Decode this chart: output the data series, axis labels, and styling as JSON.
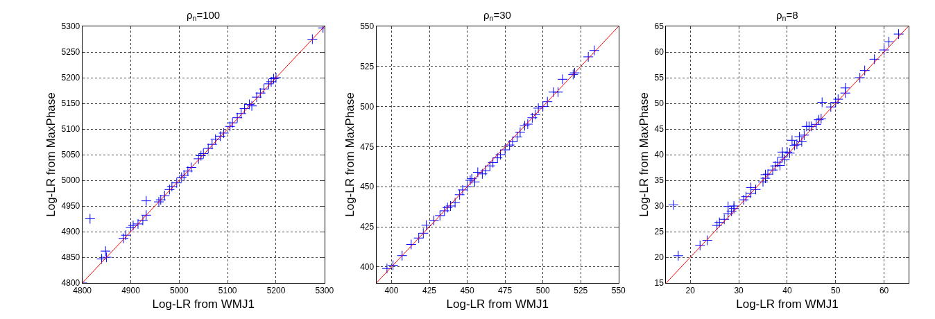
{
  "chart_data": [
    {
      "type": "scatter",
      "title": "ρ$_{n}$=100",
      "xlabel": "Log-LR from WMJ1",
      "ylabel": "Log-LR from MaxPhase",
      "xlim": [
        4800,
        5300
      ],
      "ylim": [
        4800,
        5300
      ],
      "xticks": [
        4800,
        4900,
        5000,
        5100,
        5200,
        5300
      ],
      "yticks": [
        4800,
        4850,
        4900,
        4950,
        5000,
        5050,
        5100,
        5150,
        5200,
        5250,
        5300
      ],
      "grid": true,
      "series": [
        {
          "marker": "cross",
          "color": "#0000ff",
          "x": [
            4800,
            4816,
            4840,
            4848,
            4850,
            4885,
            4890,
            4900,
            4905,
            4915,
            4925,
            4932,
            4932,
            4958,
            4962,
            4970,
            4980,
            4985,
            4995,
            5005,
            5010,
            5018,
            5025,
            5040,
            5045,
            5050,
            5060,
            5068,
            5075,
            5085,
            5092,
            5105,
            5110,
            5120,
            5128,
            5135,
            5145,
            5150,
            5160,
            5168,
            5175,
            5185,
            5190,
            5195,
            5200,
            5275,
            5297
          ],
          "values": [
            4800,
            4925,
            4847,
            4862,
            4850,
            4887,
            4893,
            4908,
            4912,
            4915,
            4922,
            4960,
            4932,
            4958,
            4962,
            4970,
            4982,
            4988,
            4995,
            5006,
            5010,
            5018,
            5025,
            5042,
            5048,
            5052,
            5062,
            5070,
            5080,
            5086,
            5092,
            5105,
            5112,
            5122,
            5130,
            5140,
            5148,
            5145,
            5162,
            5170,
            5178,
            5188,
            5192,
            5198,
            5200,
            5275,
            5297
          ]
        },
        {
          "type": "line",
          "marker": "none",
          "color": "#ff0000",
          "x": [
            4800,
            5300
          ],
          "values": [
            4800,
            5300
          ]
        }
      ]
    },
    {
      "type": "scatter",
      "title": "ρ$_{n}$=30",
      "xlabel": "Log-LR from WMJ1",
      "ylabel": "Log-LR from MaxPhase",
      "xlim": [
        390,
        550
      ],
      "ylim": [
        390,
        550
      ],
      "xticks": [
        400,
        425,
        450,
        475,
        500,
        525,
        550
      ],
      "yticks": [
        400,
        425,
        450,
        475,
        500,
        525,
        550
      ],
      "grid": true,
      "series": [
        {
          "marker": "cross",
          "color": "#0000ff",
          "x": [
            397,
            401,
            407,
            413,
            418,
            421,
            423,
            428,
            432,
            435,
            437,
            439,
            442,
            445,
            447,
            450,
            452,
            453,
            455,
            457,
            460,
            462,
            465,
            467,
            470,
            472,
            475,
            478,
            480,
            483,
            485,
            488,
            490,
            493,
            495,
            497,
            500,
            503,
            507,
            510,
            513,
            520,
            521,
            530,
            534
          ],
          "values": [
            399,
            401,
            407,
            414,
            418,
            421,
            426,
            429,
            432,
            435,
            437,
            438,
            440,
            445,
            448,
            450,
            454,
            455,
            453,
            459,
            458,
            460,
            463,
            465,
            468,
            470,
            473,
            476,
            478,
            481,
            484,
            488,
            489,
            493,
            495,
            499,
            500,
            503,
            509,
            509,
            517,
            520,
            521,
            531,
            535
          ]
        },
        {
          "type": "line",
          "marker": "none",
          "color": "#ff0000",
          "x": [
            390,
            550
          ],
          "values": [
            390,
            550
          ]
        }
      ]
    },
    {
      "type": "scatter",
      "title": "ρ$_{n}$=8",
      "xlabel": "Log-LR from WMJ1",
      "ylabel": "Log-LR from MaxPhase",
      "xlim": [
        15,
        65
      ],
      "ylim": [
        15,
        65
      ],
      "xticks": [
        20,
        30,
        40,
        50,
        60
      ],
      "yticks": [
        15,
        20,
        25,
        30,
        35,
        40,
        45,
        50,
        55,
        60,
        65
      ],
      "grid": true,
      "series": [
        {
          "marker": "cross",
          "color": "#0000ff",
          "x": [
            16.5,
            17.5,
            22,
            23.5,
            25.5,
            26,
            27,
            27.8,
            27.8,
            28.5,
            29,
            29,
            31,
            31.5,
            32.5,
            32.5,
            33.5,
            35,
            35.5,
            35.5,
            36,
            37,
            37.5,
            38,
            38.5,
            39,
            39,
            39.5,
            40,
            40.5,
            41,
            41.5,
            42,
            42.5,
            43,
            43.5,
            44,
            44.5,
            45,
            46,
            46.5,
            47,
            47.2,
            49,
            50,
            50.5,
            52,
            52,
            55,
            56,
            58,
            60,
            61,
            63
          ],
          "values": [
            30.2,
            20.3,
            22.3,
            23.3,
            26.2,
            26.8,
            27.4,
            29.9,
            28.5,
            29,
            30,
            29.5,
            31.2,
            31.8,
            33.6,
            32.5,
            33.2,
            34.7,
            36.1,
            35.4,
            36.2,
            37,
            37.8,
            38.5,
            37.9,
            39.5,
            40.5,
            39,
            40.5,
            40.3,
            42.8,
            41.8,
            42,
            43.5,
            42.5,
            43.8,
            45.5,
            45.5,
            45.5,
            45.9,
            46.8,
            47,
            50.2,
            49.3,
            50.2,
            50.8,
            52,
            53,
            55,
            56.4,
            58.6,
            60.4,
            62,
            63.5
          ]
        },
        {
          "type": "line",
          "marker": "none",
          "color": "#ff0000",
          "x": [
            15,
            65
          ],
          "values": [
            15,
            65
          ]
        }
      ]
    }
  ]
}
